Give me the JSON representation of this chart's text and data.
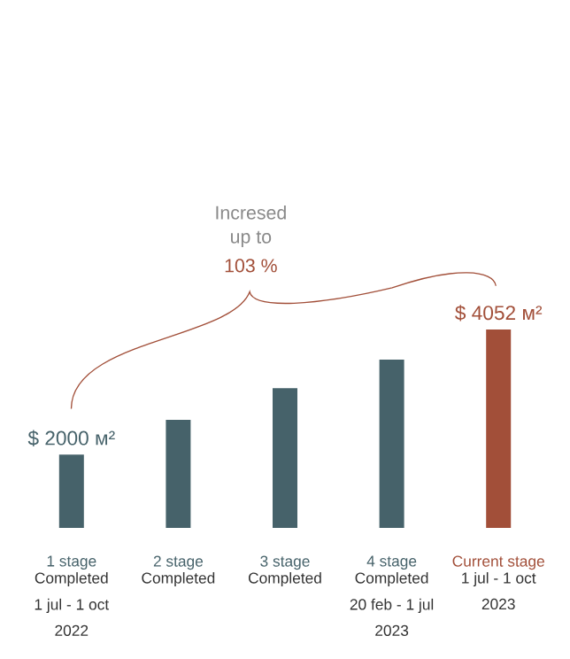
{
  "chart_data": {
    "type": "bar",
    "ylim": [
      800,
      4052
    ],
    "categories": [
      "1 stage",
      "2 stage",
      "3 stage",
      "4 stage",
      "Current stage"
    ],
    "values": [
      2000,
      2570,
      3090,
      3560,
      4052
    ],
    "colors": [
      "#46626a",
      "#46626a",
      "#46626a",
      "#46626a",
      "#a24f39"
    ],
    "value_labels": [
      "$ 2000 м²",
      null,
      null,
      null,
      "$ 4052 м²"
    ],
    "annotations": [
      "Completed",
      "1 jul - 1 oct",
      "2022",
      "Completed",
      "Completed",
      "Completed",
      "20 feb - 1 jul",
      "2023",
      "1 jul - 1 oct",
      "2023",
      "Incresed",
      "up to",
      "103 %"
    ]
  }
}
